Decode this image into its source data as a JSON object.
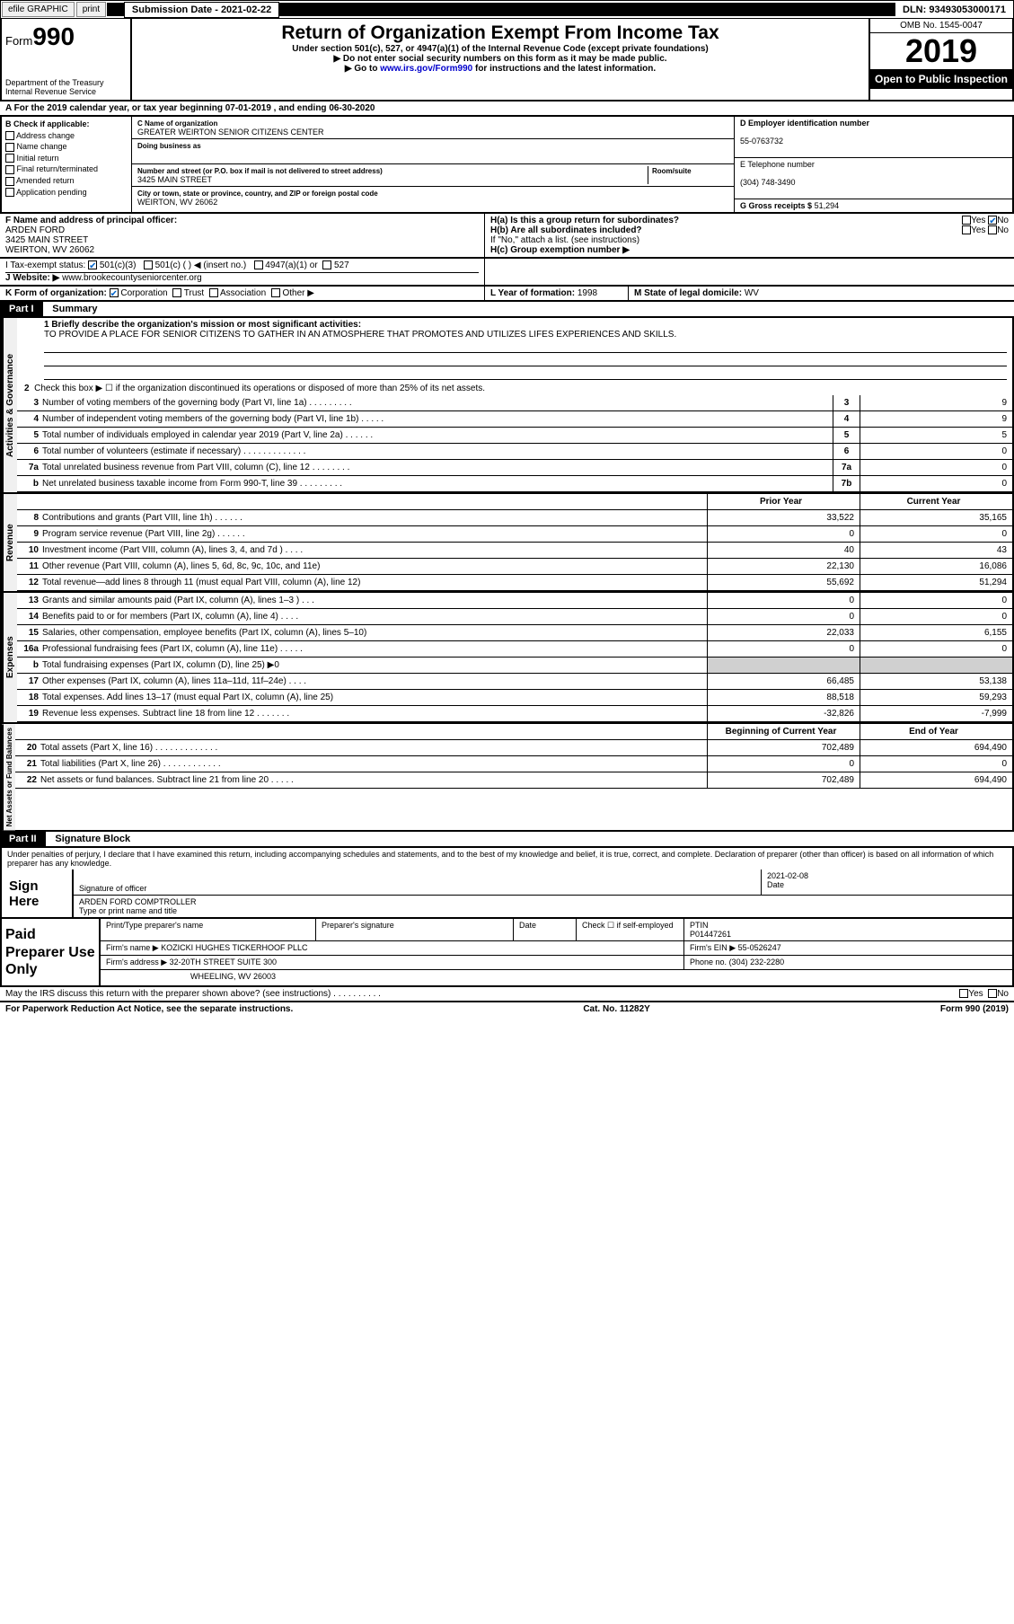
{
  "topbar": {
    "efile": "efile GRAPHIC",
    "print": "print",
    "sub_label": "Submission Date - 2021-02-22",
    "dln": "DLN: 93493053000171"
  },
  "header": {
    "form_prefix": "Form",
    "form_num": "990",
    "dept": "Department of the Treasury\nInternal Revenue Service",
    "title": "Return of Organization Exempt From Income Tax",
    "sub1": "Under section 501(c), 527, or 4947(a)(1) of the Internal Revenue Code (except private foundations)",
    "sub2": "▶ Do not enter social security numbers on this form as it may be made public.",
    "sub3_pre": "▶ Go to ",
    "sub3_link": "www.irs.gov/Form990",
    "sub3_post": " for instructions and the latest information.",
    "omb": "OMB No. 1545-0047",
    "year": "2019",
    "open": "Open to Public Inspection"
  },
  "line_a": "A  For the 2019 calendar year, or tax year beginning 07-01-2019    , and ending 06-30-2020",
  "col_b": {
    "title": "B Check if applicable:",
    "items": [
      "Address change",
      "Name change",
      "Initial return",
      "Final return/terminated",
      "Amended return",
      "Application pending"
    ]
  },
  "col_c": {
    "name_lbl": "C Name of organization",
    "name": "GREATER WEIRTON SENIOR CITIZENS CENTER",
    "dba_lbl": "Doing business as",
    "dba": "",
    "addr_lbl": "Number and street (or P.O. box if mail is not delivered to street address)",
    "room_lbl": "Room/suite",
    "addr": "3425 MAIN STREET",
    "city_lbl": "City or town, state or province, country, and ZIP or foreign postal code",
    "city": "WEIRTON, WV  26062"
  },
  "col_d": {
    "ein_lbl": "D Employer identification number",
    "ein": "55-0763732",
    "tel_lbl": "E Telephone number",
    "tel": "(304) 748-3490",
    "gross_lbl": "G Gross receipts $",
    "gross": "51,294"
  },
  "row_f": {
    "lbl": "F  Name and address of principal officer:",
    "name": "ARDEN FORD",
    "addr1": "3425 MAIN STREET",
    "addr2": "WEIRTON, WV  26062"
  },
  "row_h": {
    "ha": "H(a)  Is this a group return for subordinates?",
    "hb": "H(b)  Are all subordinates included?",
    "hb_note": "If \"No,\" attach a list. (see instructions)",
    "hc": "H(c)  Group exemption number ▶",
    "yes": "Yes",
    "no": "No"
  },
  "row_i": {
    "lbl": "I  Tax-exempt status:",
    "o1": "501(c)(3)",
    "o2": "501(c) (  ) ◀ (insert no.)",
    "o3": "4947(a)(1) or",
    "o4": "527"
  },
  "row_j": {
    "lbl": "J  Website: ▶",
    "val": "www.brookecountyseniorcenter.org"
  },
  "row_k": {
    "lbl": "K Form of organization:",
    "o1": "Corporation",
    "o2": "Trust",
    "o3": "Association",
    "o4": "Other ▶"
  },
  "row_l": {
    "lbl": "L Year of formation:",
    "val": "1998"
  },
  "row_m": {
    "lbl": "M State of legal domicile:",
    "val": "WV"
  },
  "part1": {
    "hdr": "Part I",
    "title": "Summary",
    "line1_lbl": "1  Briefly describe the organization's mission or most significant activities:",
    "line1_txt": "TO PROVIDE A PLACE FOR SENIOR CITIZENS TO GATHER IN AN ATMOSPHERE THAT PROMOTES AND UTILIZES LIFES EXPERIENCES AND SKILLS.",
    "line2": "Check this box ▶ ☐  if the organization discontinued its operations or disposed of more than 25% of its net assets."
  },
  "governance": {
    "label": "Activities & Governance",
    "rows": [
      {
        "n": "3",
        "t": "Number of voting members of the governing body (Part VI, line 1a)   .   .   .   .   .   .   .   .   .",
        "box": "3",
        "v": "9"
      },
      {
        "n": "4",
        "t": "Number of independent voting members of the governing body (Part VI, line 1b)   .   .   .   .   .",
        "box": "4",
        "v": "9"
      },
      {
        "n": "5",
        "t": "Total number of individuals employed in calendar year 2019 (Part V, line 2a)   .   .   .   .   .   .",
        "box": "5",
        "v": "5"
      },
      {
        "n": "6",
        "t": "Total number of volunteers (estimate if necessary)   .   .   .   .   .   .   .   .   .   .   .   .   .",
        "box": "6",
        "v": "0"
      },
      {
        "n": "7a",
        "t": "Total unrelated business revenue from Part VIII, column (C), line 12   .   .   .   .   .   .   .   .",
        "box": "7a",
        "v": "0"
      },
      {
        "n": "b",
        "t": "Net unrelated business taxable income from Form 990-T, line 39   .   .   .   .   .   .   .   .   .",
        "box": "7b",
        "v": "0"
      }
    ]
  },
  "revenue": {
    "label": "Revenue",
    "hdr_prior": "Prior Year",
    "hdr_current": "Current Year",
    "rows": [
      {
        "n": "8",
        "t": "Contributions and grants (Part VIII, line 1h)   .   .   .   .   .   .",
        "py": "33,522",
        "cy": "35,165"
      },
      {
        "n": "9",
        "t": "Program service revenue (Part VIII, line 2g)   .   .   .   .   .   .",
        "py": "0",
        "cy": "0"
      },
      {
        "n": "10",
        "t": "Investment income (Part VIII, column (A), lines 3, 4, and 7d )   .   .   .   .",
        "py": "40",
        "cy": "43"
      },
      {
        "n": "11",
        "t": "Other revenue (Part VIII, column (A), lines 5, 6d, 8c, 9c, 10c, and 11e)",
        "py": "22,130",
        "cy": "16,086"
      },
      {
        "n": "12",
        "t": "Total revenue—add lines 8 through 11 (must equal Part VIII, column (A), line 12)",
        "py": "55,692",
        "cy": "51,294"
      }
    ]
  },
  "expenses": {
    "label": "Expenses",
    "rows": [
      {
        "n": "13",
        "t": "Grants and similar amounts paid (Part IX, column (A), lines 1–3 )   .   .   .",
        "py": "0",
        "cy": "0"
      },
      {
        "n": "14",
        "t": "Benefits paid to or for members (Part IX, column (A), line 4)   .   .   .   .",
        "py": "0",
        "cy": "0"
      },
      {
        "n": "15",
        "t": "Salaries, other compensation, employee benefits (Part IX, column (A), lines 5–10)",
        "py": "22,033",
        "cy": "6,155"
      },
      {
        "n": "16a",
        "t": "Professional fundraising fees (Part IX, column (A), line 11e)   .   .   .   .   .",
        "py": "0",
        "cy": "0"
      },
      {
        "n": "b",
        "t": "Total fundraising expenses (Part IX, column (D), line 25) ▶0",
        "py": "shaded",
        "cy": "shaded"
      },
      {
        "n": "17",
        "t": "Other expenses (Part IX, column (A), lines 11a–11d, 11f–24e)   .   .   .   .",
        "py": "66,485",
        "cy": "53,138"
      },
      {
        "n": "18",
        "t": "Total expenses. Add lines 13–17 (must equal Part IX, column (A), line 25)",
        "py": "88,518",
        "cy": "59,293"
      },
      {
        "n": "19",
        "t": "Revenue less expenses. Subtract line 18 from line 12   .   .   .   .   .   .   .",
        "py": "-32,826",
        "cy": "-7,999"
      }
    ]
  },
  "netassets": {
    "label": "Net Assets or Fund Balances",
    "hdr_begin": "Beginning of Current Year",
    "hdr_end": "End of Year",
    "rows": [
      {
        "n": "20",
        "t": "Total assets (Part X, line 16)   .   .   .   .   .   .   .   .   .   .   .   .   .",
        "py": "702,489",
        "cy": "694,490"
      },
      {
        "n": "21",
        "t": "Total liabilities (Part X, line 26)   .   .   .   .   .   .   .   .   .   .   .   .",
        "py": "0",
        "cy": "0"
      },
      {
        "n": "22",
        "t": "Net assets or fund balances. Subtract line 21 from line 20   .   .   .   .   .",
        "py": "702,489",
        "cy": "694,490"
      }
    ]
  },
  "part2": {
    "hdr": "Part II",
    "title": "Signature Block",
    "decl": "Under penalties of perjury, I declare that I have examined this return, including accompanying schedules and statements, and to the best of my knowledge and belief, it is true, correct, and complete. Declaration of preparer (other than officer) is based on all information of which preparer has any knowledge."
  },
  "sign": {
    "label": "Sign Here",
    "sig_lbl": "Signature of officer",
    "date_lbl": "Date",
    "date": "2021-02-08",
    "name": "ARDEN FORD  COMPTROLLER",
    "name_lbl": "Type or print name and title"
  },
  "prep": {
    "label": "Paid Preparer Use Only",
    "c1": "Print/Type preparer's name",
    "c2": "Preparer's signature",
    "c3": "Date",
    "c4_pre": "Check ☐  if self-employed",
    "c5": "PTIN",
    "ptin": "P01447261",
    "firm_lbl": "Firm's name    ▶",
    "firm": "KOZICKI HUGHES TICKERHOOF PLLC",
    "ein_lbl": "Firm's EIN ▶",
    "ein": "55-0526247",
    "addr_lbl": "Firm's address ▶",
    "addr1": "32-20TH STREET SUITE 300",
    "addr2": "WHEELING, WV  26003",
    "phone_lbl": "Phone no.",
    "phone": "(304) 232-2280"
  },
  "discuss": "May the IRS discuss this return with the preparer shown above? (see instructions)   .   .   .   .   .   .   .   .   .   .",
  "footer": {
    "left": "For Paperwork Reduction Act Notice, see the separate instructions.",
    "mid": "Cat. No. 11282Y",
    "right": "Form 990 (2019)"
  }
}
